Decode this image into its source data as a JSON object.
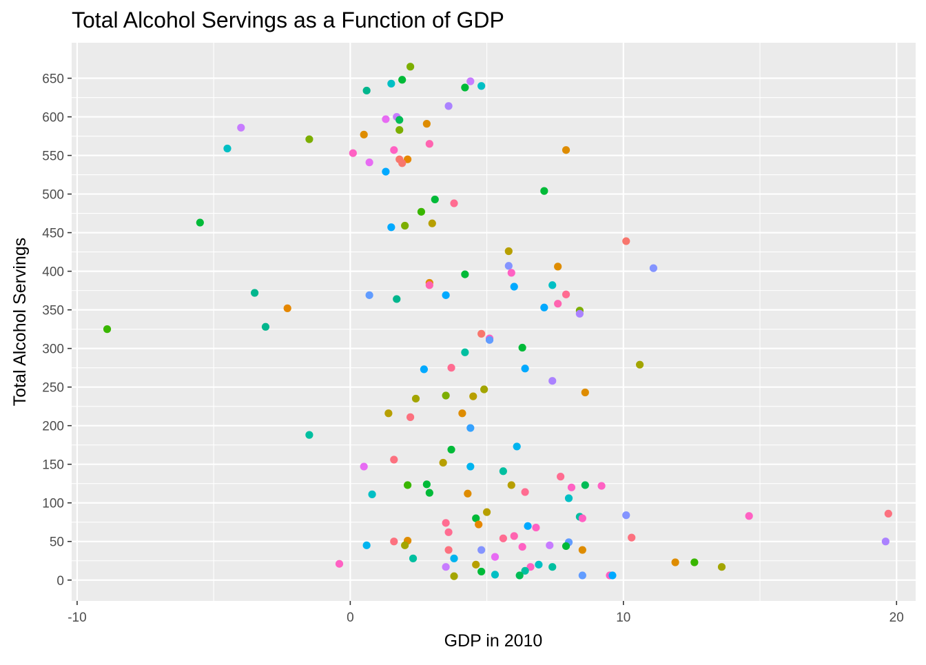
{
  "chart_data": {
    "type": "scatter",
    "title": "Total Alcohol Servings as a Function of GDP",
    "xlabel": "GDP in 2010",
    "ylabel": "Total Alcohol Servings",
    "xlim": [
      -10.2,
      20.7
    ],
    "ylim": [
      -27,
      696
    ],
    "x_ticks": [
      -10,
      0,
      10,
      20
    ],
    "x_tick_labels": [
      "-10",
      "0",
      "10",
      "20"
    ],
    "y_ticks": [
      0,
      50,
      100,
      150,
      200,
      250,
      300,
      350,
      400,
      450,
      500,
      550,
      600,
      650
    ],
    "y_tick_labels": [
      "0",
      "50",
      "100",
      "150",
      "200",
      "250",
      "300",
      "350",
      "400",
      "450",
      "500",
      "550",
      "600",
      "650"
    ],
    "grid": true,
    "legend": "none",
    "colors": {
      "panel_background": "#ebebeb",
      "grid_major": "#ffffff",
      "tick_text": "#4d4d4d"
    },
    "points": [
      {
        "x": 2.2,
        "y": 665,
        "color": "#7cae00"
      },
      {
        "x": 4.4,
        "y": 646,
        "color": "#c77cff"
      },
      {
        "x": 1.9,
        "y": 648,
        "color": "#00ba38"
      },
      {
        "x": 1.5,
        "y": 643,
        "color": "#00bfc4"
      },
      {
        "x": 4.8,
        "y": 640,
        "color": "#00bfc4"
      },
      {
        "x": 4.2,
        "y": 638,
        "color": "#00ba38"
      },
      {
        "x": 0.6,
        "y": 634,
        "color": "#00b68d"
      },
      {
        "x": 3.6,
        "y": 614,
        "color": "#ab82ff"
      },
      {
        "x": 1.7,
        "y": 600,
        "color": "#c77cff"
      },
      {
        "x": 1.3,
        "y": 597,
        "color": "#e76bf3"
      },
      {
        "x": 1.8,
        "y": 596,
        "color": "#00bc56"
      },
      {
        "x": 2.8,
        "y": 591,
        "color": "#de8c00"
      },
      {
        "x": -4.0,
        "y": 586,
        "color": "#c77cff"
      },
      {
        "x": 1.8,
        "y": 583,
        "color": "#7cae00"
      },
      {
        "x": 0.5,
        "y": 577,
        "color": "#de8c00"
      },
      {
        "x": -1.5,
        "y": 571,
        "color": "#7cae00"
      },
      {
        "x": 2.9,
        "y": 565,
        "color": "#ff64b0"
      },
      {
        "x": -4.5,
        "y": 559,
        "color": "#00bfc4"
      },
      {
        "x": 7.9,
        "y": 557,
        "color": "#de8c00"
      },
      {
        "x": 1.6,
        "y": 557,
        "color": "#ff61c3"
      },
      {
        "x": 0.1,
        "y": 553,
        "color": "#ff61c3"
      },
      {
        "x": 1.8,
        "y": 545,
        "color": "#f8766d"
      },
      {
        "x": 2.1,
        "y": 545,
        "color": "#e58700"
      },
      {
        "x": 0.7,
        "y": 541,
        "color": "#e76bf3"
      },
      {
        "x": 1.9,
        "y": 540,
        "color": "#f8766d"
      },
      {
        "x": 1.3,
        "y": 529,
        "color": "#00a9ff"
      },
      {
        "x": 7.1,
        "y": 504,
        "color": "#00ba38"
      },
      {
        "x": 3.1,
        "y": 493,
        "color": "#00ba38"
      },
      {
        "x": 3.8,
        "y": 488,
        "color": "#ff6c91"
      },
      {
        "x": 2.6,
        "y": 477,
        "color": "#39b600"
      },
      {
        "x": -5.5,
        "y": 463,
        "color": "#00ba38"
      },
      {
        "x": 3.0,
        "y": 462,
        "color": "#b79f00"
      },
      {
        "x": 2.0,
        "y": 459,
        "color": "#7cae00"
      },
      {
        "x": 1.5,
        "y": 457,
        "color": "#00a9ff"
      },
      {
        "x": 10.1,
        "y": 439,
        "color": "#f8766d"
      },
      {
        "x": 5.8,
        "y": 426,
        "color": "#b79f00"
      },
      {
        "x": 11.1,
        "y": 404,
        "color": "#8494ff"
      },
      {
        "x": 5.8,
        "y": 407,
        "color": "#8494ff"
      },
      {
        "x": 7.6,
        "y": 406,
        "color": "#de8c00"
      },
      {
        "x": 5.9,
        "y": 398,
        "color": "#ff61c3"
      },
      {
        "x": 4.2,
        "y": 396,
        "color": "#00ba38"
      },
      {
        "x": 2.9,
        "y": 385,
        "color": "#de8c00"
      },
      {
        "x": 2.9,
        "y": 382,
        "color": "#ff64b0"
      },
      {
        "x": 6.0,
        "y": 380,
        "color": "#00a9ff"
      },
      {
        "x": 7.4,
        "y": 382,
        "color": "#00bfc4"
      },
      {
        "x": -3.5,
        "y": 372,
        "color": "#00b68d"
      },
      {
        "x": 0.7,
        "y": 369,
        "color": "#619cff"
      },
      {
        "x": 3.5,
        "y": 369,
        "color": "#00a9ff"
      },
      {
        "x": 7.9,
        "y": 370,
        "color": "#ff6c91"
      },
      {
        "x": 1.7,
        "y": 364,
        "color": "#00b68d"
      },
      {
        "x": 7.6,
        "y": 358,
        "color": "#ff64b0"
      },
      {
        "x": 7.1,
        "y": 353,
        "color": "#00a9ff"
      },
      {
        "x": -2.3,
        "y": 352,
        "color": "#e58700"
      },
      {
        "x": 8.4,
        "y": 349,
        "color": "#7cae00"
      },
      {
        "x": 8.4,
        "y": 345,
        "color": "#ab82ff"
      },
      {
        "x": -3.1,
        "y": 328,
        "color": "#00b68d"
      },
      {
        "x": -8.9,
        "y": 325,
        "color": "#39b600"
      },
      {
        "x": 4.8,
        "y": 319,
        "color": "#f8766d"
      },
      {
        "x": 5.1,
        "y": 313,
        "color": "#ff61c3"
      },
      {
        "x": 5.1,
        "y": 311,
        "color": "#619cff"
      },
      {
        "x": 6.3,
        "y": 301,
        "color": "#00ba38"
      },
      {
        "x": 4.2,
        "y": 295,
        "color": "#00bfa0"
      },
      {
        "x": 10.6,
        "y": 279,
        "color": "#a3a500"
      },
      {
        "x": 2.7,
        "y": 273,
        "color": "#00a9ff"
      },
      {
        "x": 3.7,
        "y": 275,
        "color": "#ff6c91"
      },
      {
        "x": 6.4,
        "y": 274,
        "color": "#00a9ff"
      },
      {
        "x": 7.4,
        "y": 258,
        "color": "#ab82ff"
      },
      {
        "x": 4.9,
        "y": 247,
        "color": "#a3a500"
      },
      {
        "x": 8.6,
        "y": 243,
        "color": "#de8c00"
      },
      {
        "x": 3.5,
        "y": 239,
        "color": "#7cae00"
      },
      {
        "x": 4.5,
        "y": 238,
        "color": "#b79f00"
      },
      {
        "x": 2.4,
        "y": 235,
        "color": "#a3a500"
      },
      {
        "x": 1.4,
        "y": 216,
        "color": "#b79f00"
      },
      {
        "x": 4.1,
        "y": 216,
        "color": "#de8c00"
      },
      {
        "x": 2.2,
        "y": 211,
        "color": "#fc717f"
      },
      {
        "x": 4.4,
        "y": 197,
        "color": "#35a2ff"
      },
      {
        "x": -1.5,
        "y": 188,
        "color": "#00bfa0"
      },
      {
        "x": 6.1,
        "y": 173,
        "color": "#00b4ef"
      },
      {
        "x": 3.7,
        "y": 169,
        "color": "#00ba38"
      },
      {
        "x": 1.6,
        "y": 156,
        "color": "#fc717f"
      },
      {
        "x": 3.4,
        "y": 152,
        "color": "#b79f00"
      },
      {
        "x": 0.5,
        "y": 147,
        "color": "#e76bf3"
      },
      {
        "x": 4.4,
        "y": 147,
        "color": "#00b4ef"
      },
      {
        "x": 5.6,
        "y": 141,
        "color": "#00bfa0"
      },
      {
        "x": 7.7,
        "y": 134,
        "color": "#ff6c91"
      },
      {
        "x": 2.1,
        "y": 123,
        "color": "#39b600"
      },
      {
        "x": 2.8,
        "y": 124,
        "color": "#00ba38"
      },
      {
        "x": 5.9,
        "y": 123,
        "color": "#b79f00"
      },
      {
        "x": 8.6,
        "y": 123,
        "color": "#00bc56"
      },
      {
        "x": 9.2,
        "y": 122,
        "color": "#ff61c3"
      },
      {
        "x": 8.1,
        "y": 120,
        "color": "#ff61c3"
      },
      {
        "x": 2.9,
        "y": 113,
        "color": "#00ba38"
      },
      {
        "x": 4.3,
        "y": 112,
        "color": "#de8c00"
      },
      {
        "x": 6.4,
        "y": 114,
        "color": "#ff6c91"
      },
      {
        "x": 0.8,
        "y": 111,
        "color": "#00bfc4"
      },
      {
        "x": 8.0,
        "y": 106,
        "color": "#00bfc4"
      },
      {
        "x": 5.0,
        "y": 88,
        "color": "#b79f00"
      },
      {
        "x": 10.1,
        "y": 84,
        "color": "#8494ff"
      },
      {
        "x": 14.6,
        "y": 83,
        "color": "#ff61c3"
      },
      {
        "x": 19.7,
        "y": 86,
        "color": "#fc717f"
      },
      {
        "x": 8.4,
        "y": 82,
        "color": "#00bfa0"
      },
      {
        "x": 8.5,
        "y": 80,
        "color": "#ff61c3"
      },
      {
        "x": 4.6,
        "y": 80,
        "color": "#00ba38"
      },
      {
        "x": 3.5,
        "y": 74,
        "color": "#ff6c91"
      },
      {
        "x": 4.7,
        "y": 72,
        "color": "#e58700"
      },
      {
        "x": 6.5,
        "y": 70,
        "color": "#00a9ff"
      },
      {
        "x": 6.8,
        "y": 68,
        "color": "#ff61c3"
      },
      {
        "x": 3.6,
        "y": 62,
        "color": "#ff6c91"
      },
      {
        "x": 6.0,
        "y": 57,
        "color": "#ff64b0"
      },
      {
        "x": 5.6,
        "y": 54,
        "color": "#ff6c91"
      },
      {
        "x": 10.3,
        "y": 55,
        "color": "#fc717f"
      },
      {
        "x": 1.6,
        "y": 50,
        "color": "#fc717f"
      },
      {
        "x": 2.1,
        "y": 51,
        "color": "#de8c00"
      },
      {
        "x": 19.6,
        "y": 50,
        "color": "#ab82ff"
      },
      {
        "x": 8.0,
        "y": 49,
        "color": "#619cff"
      },
      {
        "x": 0.6,
        "y": 45,
        "color": "#00b4ef"
      },
      {
        "x": 2.0,
        "y": 45,
        "color": "#a3a500"
      },
      {
        "x": 6.3,
        "y": 43,
        "color": "#ff61c3"
      },
      {
        "x": 7.3,
        "y": 45,
        "color": "#c77cff"
      },
      {
        "x": 7.9,
        "y": 44,
        "color": "#00ba38"
      },
      {
        "x": 3.6,
        "y": 39,
        "color": "#fc717f"
      },
      {
        "x": 4.8,
        "y": 39,
        "color": "#8494ff"
      },
      {
        "x": 8.5,
        "y": 39,
        "color": "#de8c00"
      },
      {
        "x": 2.3,
        "y": 28,
        "color": "#00bfa0"
      },
      {
        "x": 3.8,
        "y": 28,
        "color": "#00b4ef"
      },
      {
        "x": 5.3,
        "y": 30,
        "color": "#e76bf3"
      },
      {
        "x": -0.4,
        "y": 21,
        "color": "#ff61c3"
      },
      {
        "x": 4.6,
        "y": 20,
        "color": "#b79f00"
      },
      {
        "x": 6.9,
        "y": 20,
        "color": "#00bfc4"
      },
      {
        "x": 7.4,
        "y": 17,
        "color": "#00bfa0"
      },
      {
        "x": 6.6,
        "y": 17,
        "color": "#ff61c3"
      },
      {
        "x": 3.5,
        "y": 17,
        "color": "#c77cff"
      },
      {
        "x": 11.9,
        "y": 23,
        "color": "#de8c00"
      },
      {
        "x": 12.6,
        "y": 23,
        "color": "#39b600"
      },
      {
        "x": 13.6,
        "y": 17,
        "color": "#a3a500"
      },
      {
        "x": 4.8,
        "y": 11,
        "color": "#00ba38"
      },
      {
        "x": 6.4,
        "y": 12,
        "color": "#00bfa0"
      },
      {
        "x": 3.8,
        "y": 5,
        "color": "#a3a500"
      },
      {
        "x": 5.3,
        "y": 7,
        "color": "#00bfc4"
      },
      {
        "x": 6.2,
        "y": 6,
        "color": "#00bc56"
      },
      {
        "x": 8.5,
        "y": 6,
        "color": "#619cff"
      },
      {
        "x": 9.5,
        "y": 6,
        "color": "#ff61c3"
      },
      {
        "x": 9.6,
        "y": 6,
        "color": "#00a9ff"
      }
    ]
  }
}
